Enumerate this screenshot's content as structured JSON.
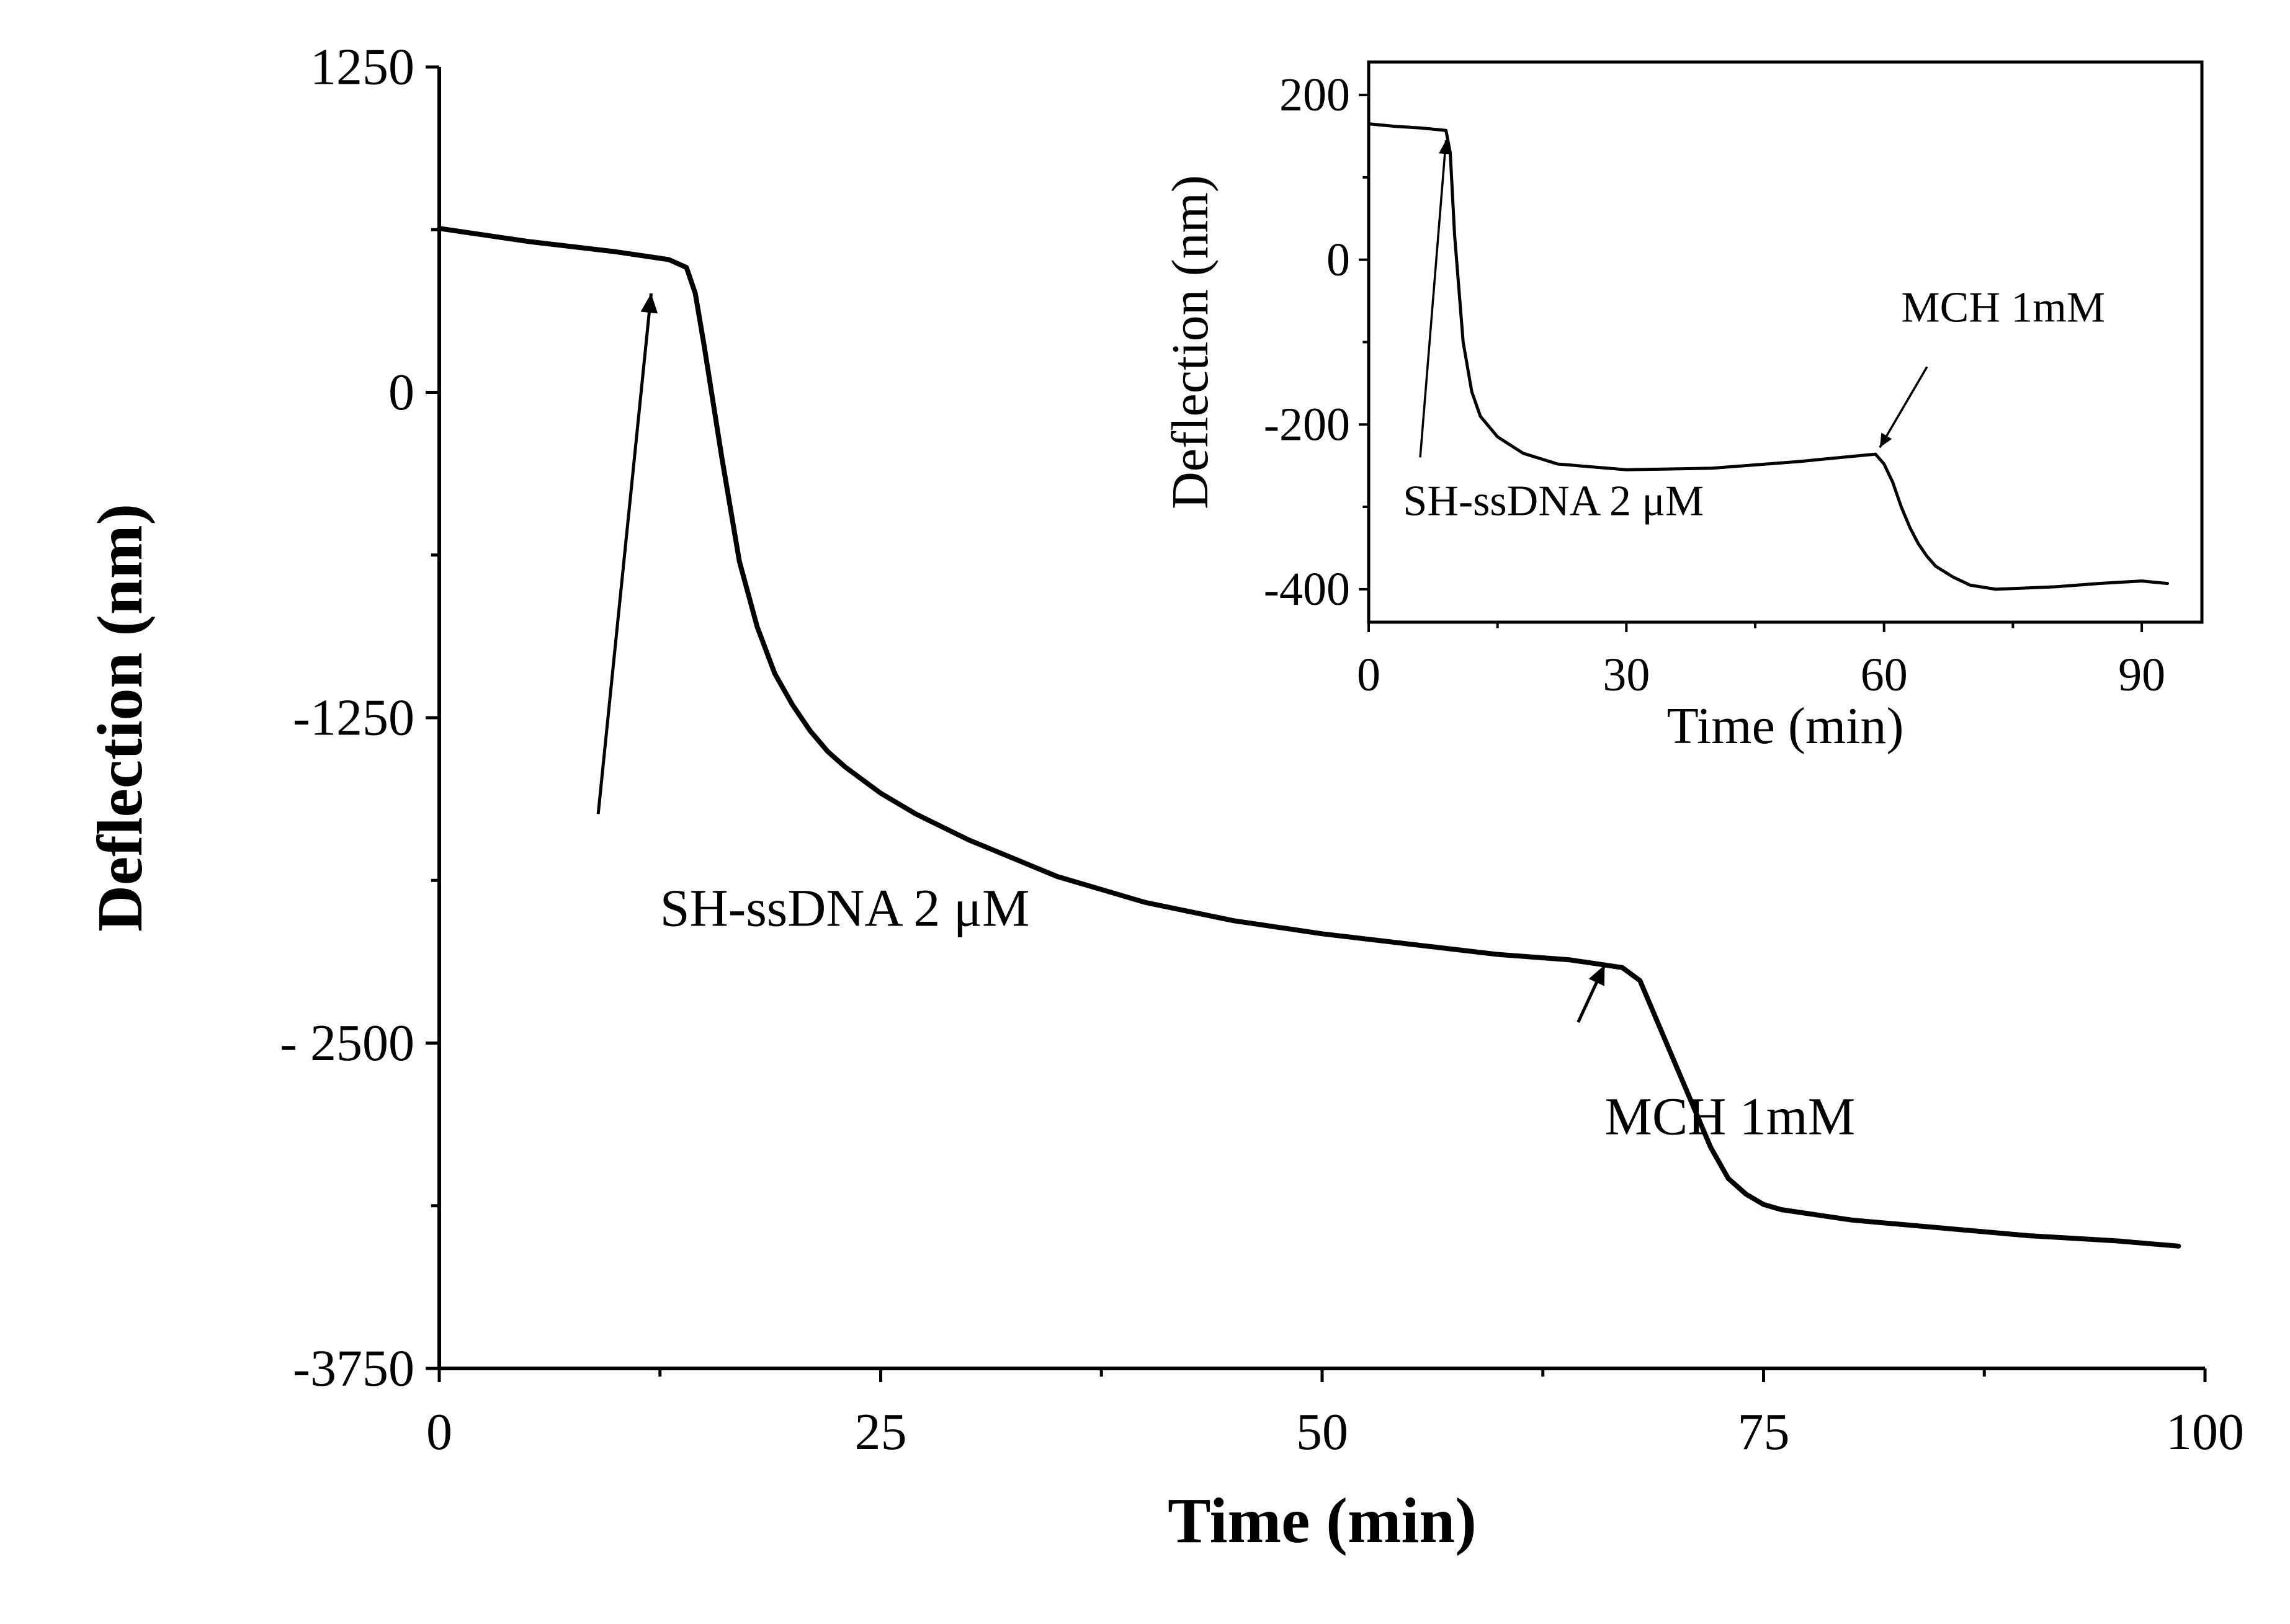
{
  "chart_data": [
    {
      "type": "line",
      "title": "",
      "xlabel": "Time (min)",
      "ylabel": "Deflection (nm)",
      "xlim": [
        0,
        100
      ],
      "ylim": [
        -3750,
        1250
      ],
      "x_ticks": [
        0,
        25,
        50,
        75,
        100
      ],
      "x_tick_labels": [
        "0",
        "25",
        "50",
        "75",
        "100"
      ],
      "y_ticks": [
        1250,
        0,
        -1250,
        -2500,
        -3750
      ],
      "y_tick_labels": [
        "1250",
        "0",
        "-1250",
        "- 2500",
        "-3750"
      ],
      "series": [
        {
          "name": "Deflection",
          "color": "#000000",
          "x": [
            0,
            5,
            10,
            13,
            14,
            14.5,
            15,
            16,
            17,
            18,
            19,
            20,
            21,
            22,
            23,
            24,
            25,
            27,
            30,
            35,
            40,
            45,
            50,
            55,
            60,
            64,
            66,
            67,
            68,
            69,
            70,
            71,
            72,
            73,
            74,
            75,
            76,
            78,
            80,
            85,
            90,
            95,
            98.5
          ],
          "y": [
            630,
            580,
            540,
            510,
            480,
            380,
            180,
            -250,
            -650,
            -900,
            -1080,
            -1200,
            -1300,
            -1380,
            -1440,
            -1490,
            -1540,
            -1620,
            -1720,
            -1860,
            -1960,
            -2030,
            -2080,
            -2120,
            -2160,
            -2180,
            -2200,
            -2210,
            -2260,
            -2420,
            -2580,
            -2740,
            -2900,
            -3020,
            -3080,
            -3120,
            -3140,
            -3160,
            -3180,
            -3210,
            -3240,
            -3260,
            -3280
          ]
        }
      ],
      "annotations": [
        {
          "text": "SH-ssDNA    2 μM",
          "x": 12.5,
          "y": -2050
        },
        {
          "text": "MCH 1mM",
          "x": 66,
          "y": -2850
        }
      ]
    },
    {
      "type": "line",
      "title": "",
      "xlabel": "Time (min)",
      "ylabel": "Deflection (nm)",
      "xlim": [
        0,
        97
      ],
      "ylim": [
        -440,
        240
      ],
      "x_ticks": [
        0,
        30,
        60,
        90
      ],
      "x_tick_labels": [
        "0",
        "30",
        "60",
        "90"
      ],
      "y_ticks": [
        200,
        0,
        -200,
        -400
      ],
      "y_tick_labels": [
        "200",
        "0",
        "-200",
        "-400"
      ],
      "series": [
        {
          "name": "Deflection",
          "color": "#000000",
          "x": [
            0,
            3,
            6,
            8,
            9,
            9.5,
            10,
            11,
            12,
            13,
            15,
            18,
            22,
            30,
            40,
            50,
            57,
            59,
            60,
            61,
            62,
            63,
            64,
            65,
            66,
            68,
            70,
            73,
            80,
            85,
            90,
            93
          ],
          "y": [
            165,
            162,
            160,
            158,
            157,
            130,
            30,
            -100,
            -160,
            -190,
            -215,
            -235,
            -248,
            -255,
            -253,
            -245,
            -238,
            -236,
            -248,
            -270,
            -300,
            -325,
            -345,
            -360,
            -372,
            -385,
            -395,
            -400,
            -397,
            -393,
            -390,
            -393
          ]
        }
      ],
      "annotations": [
        {
          "text": "SH-ssDNA  2 μM",
          "x": 4,
          "y": -310
        },
        {
          "text": "MCH 1mM",
          "x": 62,
          "y": -75
        }
      ]
    }
  ]
}
